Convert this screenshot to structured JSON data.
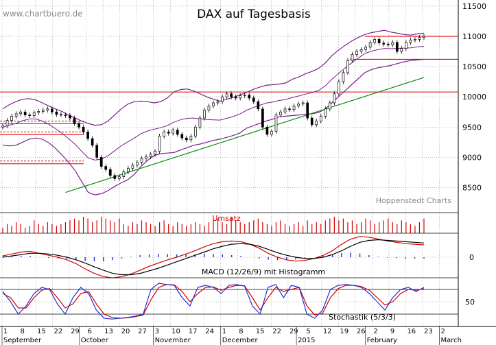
{
  "watermark": "www.chartbuero.de",
  "title": "DAX auf Tagesbasis",
  "source": "Hoppenstedt Charts",
  "panels": {
    "volume_label": "Umsatz",
    "macd_label": "MACD (12/26/9) mit Histogramm",
    "stoch_label": "Stochastik (5/3/3)"
  },
  "colors": {
    "up": "#000000",
    "down": "#000000",
    "bollinger": "#7a1f8c",
    "resistance": "#d40000",
    "trendline": "#0a8a0a",
    "volume": "#d40000",
    "macd": "#d40000",
    "signal": "#000000",
    "histogram": "#1f2fd0",
    "stoch_k": "#1f2fd0",
    "stoch_d": "#d40000"
  },
  "chart_data": [
    {
      "type": "candlestick",
      "title": "DAX auf Tagesbasis",
      "ylim": [
        8200,
        11600
      ],
      "yticks": [
        8500,
        9000,
        9500,
        10000,
        10500,
        11000,
        11500
      ],
      "x_tick_labels": [
        "1",
        "8",
        "15",
        "22",
        "29",
        "6",
        "13",
        "20",
        "27",
        "3",
        "10",
        "17",
        "24",
        "1",
        "8",
        "15",
        "22",
        "29",
        "5",
        "12",
        "19",
        "26",
        "2",
        "9",
        "16",
        "23",
        "2"
      ],
      "month_labels": [
        "September",
        "October",
        "November",
        "December",
        "2015",
        "February",
        "March"
      ],
      "horizontal_lines": [
        10080,
        10620,
        11000
      ],
      "dashed_lines": [
        9420,
        9600,
        8940
      ],
      "close": [
        9520,
        9610,
        9680,
        9720,
        9750,
        9700,
        9690,
        9740,
        9760,
        9780,
        9800,
        9750,
        9710,
        9700,
        9690,
        9650,
        9560,
        9500,
        9420,
        9310,
        9200,
        9000,
        8850,
        8800,
        8700,
        8650,
        8680,
        8760,
        8820,
        8870,
        8920,
        8980,
        9010,
        9050,
        9100,
        9350,
        9420,
        9400,
        9450,
        9380,
        9320,
        9290,
        9350,
        9500,
        9650,
        9780,
        9850,
        9900,
        9920,
        10000,
        10050,
        10000,
        9980,
        10020,
        10030,
        9980,
        9920,
        9800,
        9500,
        9380,
        9430,
        9700,
        9750,
        9800,
        9790,
        9850,
        9880,
        9900,
        9650,
        9540,
        9600,
        9680,
        9800,
        9900,
        10050,
        10250,
        10400,
        10600,
        10700,
        10750,
        10780,
        10820,
        10900,
        10950,
        10890,
        10870,
        10860,
        10900,
        10750,
        10800,
        10900,
        10940,
        10950,
        10980,
        11000
      ],
      "bollinger_upper": [
        9800,
        9870,
        9920,
        9960,
        9970,
        9950,
        9900,
        9850,
        9800,
        9760,
        9700,
        9650,
        9600,
        9560,
        9530,
        9540,
        9600,
        9700,
        9800,
        9880,
        9920,
        9930,
        9920,
        9900,
        9920,
        9980,
        10080,
        10120,
        10130,
        10100,
        10050,
        10000,
        9960,
        9930,
        9960,
        9990,
        10030,
        10070,
        10120,
        10160,
        10190,
        10200,
        10210,
        10230,
        10290,
        10330,
        10380,
        10420,
        10470,
        10560,
        10680,
        10770,
        10850,
        10920,
        10980,
        11030,
        11060,
        11080,
        11100,
        11070,
        11050,
        11030,
        11020,
        11040,
        11050
      ],
      "bollinger_lower": [
        9200,
        9190,
        9200,
        9250,
        9300,
        9320,
        9300,
        9240,
        9150,
        9040,
        8920,
        8780,
        8600,
        8420,
        8380,
        8400,
        8450,
        8520,
        8580,
        8630,
        8720,
        8850,
        8950,
        9030,
        9060,
        9070,
        9080,
        9120,
        9160,
        9200,
        9220,
        9250,
        9280,
        9300,
        9330,
        9360,
        9400,
        9480,
        9520,
        9560,
        9600,
        9630,
        9670,
        9680,
        9690,
        9700,
        9710,
        9720,
        9740,
        9800,
        9900,
        10000,
        10100,
        10200,
        10300,
        10400,
        10450,
        10480,
        10500,
        10520,
        10550,
        10580,
        10600,
        10610,
        10620
      ],
      "trendline": [
        [
          14,
          8420
        ],
        [
          94,
          10320
        ]
      ]
    },
    {
      "type": "bar",
      "title": "Umsatz",
      "values": [
        3,
        5,
        4,
        6,
        5,
        3,
        4,
        7,
        5,
        4,
        6,
        5,
        4,
        5,
        6,
        7,
        8,
        7,
        9,
        8,
        6,
        7,
        9,
        8,
        7,
        6,
        8,
        5,
        4,
        6,
        5,
        7,
        6,
        5,
        4,
        6,
        7,
        5,
        4,
        6,
        5,
        4,
        5,
        6,
        5,
        4,
        6,
        7,
        8,
        6,
        5,
        9,
        7,
        6,
        5,
        6,
        7,
        8,
        6,
        5,
        4,
        6,
        7,
        5,
        4,
        5,
        6,
        4,
        7,
        5,
        6,
        5,
        7,
        8,
        9,
        7,
        8,
        6,
        7,
        5,
        6,
        8,
        7,
        5,
        6,
        7,
        8,
        6,
        5,
        7,
        6,
        5,
        4,
        6,
        8
      ]
    },
    {
      "type": "line",
      "title": "MACD (12/26/9) mit Histogramm",
      "yticks": [
        0
      ],
      "series": [
        {
          "values": [
            0.2,
            0.5,
            0.8,
            0.9,
            0.6,
            0.3,
            0.0,
            -0.4,
            -1.0,
            -1.8,
            -2.5,
            -3.0,
            -3.2,
            -3.0,
            -2.6,
            -2.0,
            -1.4,
            -0.9,
            -0.4,
            0.0,
            0.5,
            1.0,
            1.6,
            2.1,
            2.4,
            2.5,
            2.4,
            2.0,
            1.4,
            0.6,
            0.0,
            -0.4,
            -0.6,
            -0.5,
            -0.2,
            0.3,
            1.0,
            2.0,
            2.8,
            3.2,
            3.1,
            2.8,
            2.5,
            2.3,
            2.1,
            2.0,
            1.9
          ]
        },
        {
          "values": [
            0.0,
            0.2,
            0.4,
            0.6,
            0.6,
            0.5,
            0.3,
            0.0,
            -0.4,
            -0.9,
            -1.5,
            -2.0,
            -2.5,
            -2.7,
            -2.7,
            -2.5,
            -2.1,
            -1.7,
            -1.2,
            -0.7,
            -0.2,
            0.3,
            0.8,
            1.3,
            1.7,
            2.0,
            2.1,
            2.0,
            1.7,
            1.2,
            0.7,
            0.3,
            0.0,
            -0.2,
            -0.2,
            0.0,
            0.4,
            1.0,
            1.7,
            2.3,
            2.6,
            2.7,
            2.6,
            2.5,
            2.4,
            2.3,
            2.2
          ]
        }
      ]
    },
    {
      "type": "line",
      "title": "Stochastik (5/3/3)",
      "yticks": [
        50
      ],
      "ylim": [
        0,
        100
      ],
      "series": [
        {
          "values": [
            75,
            50,
            20,
            40,
            70,
            85,
            80,
            45,
            20,
            60,
            85,
            70,
            30,
            10,
            8,
            10,
            12,
            15,
            20,
            80,
            95,
            92,
            90,
            60,
            40,
            85,
            90,
            85,
            70,
            90,
            92,
            88,
            40,
            20,
            85,
            92,
            60,
            90,
            85,
            20,
            10,
            30,
            80,
            90,
            92,
            90,
            85,
            70,
            50,
            30,
            60,
            80,
            85,
            75,
            85
          ]
        },
        {
          "values": [
            70,
            60,
            35,
            35,
            60,
            78,
            82,
            60,
            35,
            45,
            70,
            75,
            45,
            20,
            12,
            10,
            11,
            14,
            18,
            55,
            85,
            92,
            91,
            75,
            50,
            70,
            85,
            86,
            78,
            85,
            90,
            89,
            60,
            30,
            60,
            85,
            75,
            80,
            85,
            40,
            18,
            22,
            60,
            82,
            90,
            90,
            87,
            78,
            60,
            42,
            50,
            70,
            80,
            78,
            82
          ]
        }
      ]
    }
  ]
}
